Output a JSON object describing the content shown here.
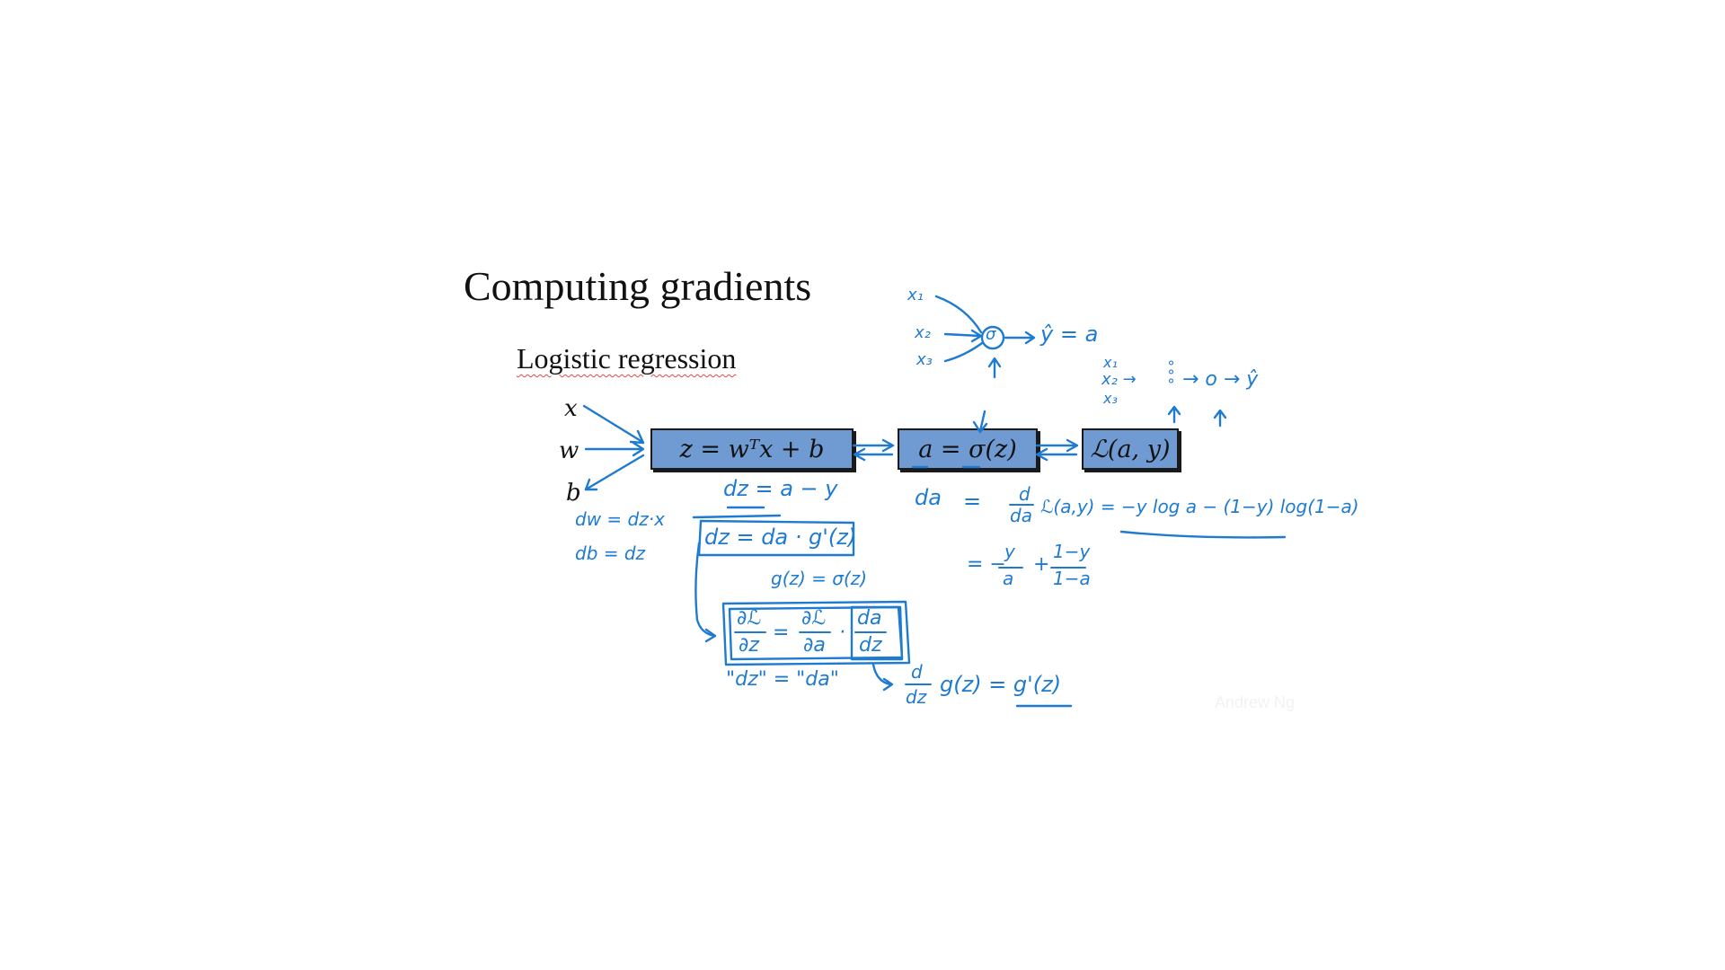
{
  "slide": {
    "title": "Computing gradients",
    "subtitle": "Logistic regression",
    "credit": "Andrew Ng"
  },
  "graph": {
    "inputs": {
      "x": "x",
      "w": "w",
      "b": "b"
    },
    "node_linear": "z = wᵀx + b",
    "node_activation": "a = σ(z)",
    "node_loss": "ℒ(a, y)"
  },
  "annotations": {
    "nn_x1": "x₁",
    "nn_x2": "x₂",
    "nn_x3": "x₃",
    "nn_sigma": "σ",
    "nn_yhat": "ŷ = a",
    "nn2_x1": "x₁",
    "nn2_x2": "x₂ →",
    "nn2_x3": "x₃",
    "nn2_nodes": "°°°",
    "nn2_out": "→ o → ŷ",
    "dz_top": "dz = a − y",
    "dz_chain": "dz = da · g'(z)",
    "dw": "dw = dz·x",
    "db": "db = dz",
    "g_def": "g(z) = σ(z)",
    "chain_lhs_num": "∂ℒ",
    "chain_lhs_den": "∂z",
    "chain_mid_num": "∂ℒ",
    "chain_mid_den": "∂a",
    "chain_rhs_num": "da",
    "chain_rhs_den": "dz",
    "chain_eq": "=",
    "chain_dot": "·",
    "chain_names": "\"dz\" = \"da\"",
    "dgdz_num": "d",
    "dgdz_den": "dz",
    "dgdz_rest": "g(z) = g'(z)",
    "da_label": "da",
    "da_eq": "=",
    "da_frac_num": "d",
    "da_frac_den": "da",
    "da_rhs": "ℒ(a,y) = −y log a − (1−y) log(1−a)",
    "da_result_prefix": "= −",
    "da_result_n1": "y",
    "da_result_d1": "a",
    "da_result_plus": "+",
    "da_result_n2": "1−y",
    "da_result_d2": "1−a"
  },
  "colors": {
    "ink": "#1e7bd0",
    "node_fill": "#6f9bd2",
    "node_border": "#1a1a1a",
    "text": "#111111"
  }
}
